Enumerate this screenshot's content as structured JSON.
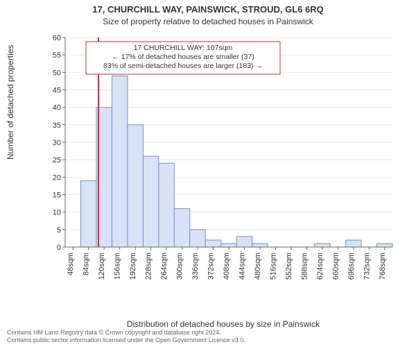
{
  "title": "17, CHURCHILL WAY, PAINSWICK, STROUD, GL6 6RQ",
  "subtitle": "Size of property relative to detached houses in Painswick",
  "ylabel": "Number of detached properties",
  "xlabel": "Distribution of detached houses by size in Painswick",
  "footnote_line1": "Contains HM Land Registry data © Crown copyright and database right 2024.",
  "footnote_line2": "Contains public sector information licensed under the Open Government Licence v3.0.",
  "chart": {
    "type": "bar-histogram",
    "background_color": "#ffffff",
    "grid_color": "#e8e8e8",
    "axis_color": "#666666",
    "bar_fill": "#d8e1f5",
    "bar_stroke": "#7a8fc9",
    "vline_color": "#d02a2a",
    "vline_x": 107,
    "label_fontsize": 12,
    "tick_fontsize": 11,
    "ylim": [
      0,
      60
    ],
    "ytick_step": 5,
    "xlim": [
      30,
      786
    ],
    "bin_width": 36,
    "x_start": 30,
    "x_tick_start": 48,
    "x_tick_step": 36,
    "x_tick_count": 21,
    "values": [
      0,
      19,
      40,
      49,
      35,
      26,
      24,
      11,
      5,
      2,
      1,
      3,
      1,
      0,
      0,
      0,
      1,
      0,
      2,
      0,
      1
    ],
    "annotation": {
      "box_border": "#d02a2a",
      "box_bg": "#ffffff",
      "lines": [
        "17 CHURCHILL WAY: 107sqm",
        "← 17% of detached houses are smaller (37)",
        "83% of semi-detached houses are larger (183) →"
      ]
    }
  }
}
